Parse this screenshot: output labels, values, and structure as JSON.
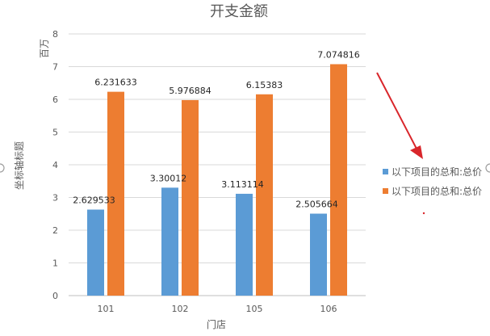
{
  "chart_data": {
    "type": "bar",
    "title": "开支金额",
    "unit_label": "百万",
    "xlabel": "门店",
    "ylabel": "坐标轴标题",
    "categories": [
      "101",
      "102",
      "105",
      "106"
    ],
    "ylim": [
      0,
      8
    ],
    "yticks": [
      0,
      1,
      2,
      3,
      4,
      5,
      6,
      7,
      8
    ],
    "grid": true,
    "legend_position": "right",
    "series": [
      {
        "name": "以下项目的总和:总价",
        "color": "#5B9BD5",
        "values": [
          2.629533,
          3.30012,
          3.113114,
          2.505664
        ],
        "labels": [
          "2.629533",
          "3.30012",
          "3.113114",
          "2.505664"
        ]
      },
      {
        "name": "以下项目的总和:总价",
        "color": "#ED7D31",
        "values": [
          6.231633,
          5.976884,
          6.15383,
          7.074816
        ],
        "labels": [
          "6.231633",
          "5.976884",
          "6.15383",
          "7.074816"
        ]
      }
    ]
  },
  "annotation": {
    "color": "#D9262B"
  }
}
